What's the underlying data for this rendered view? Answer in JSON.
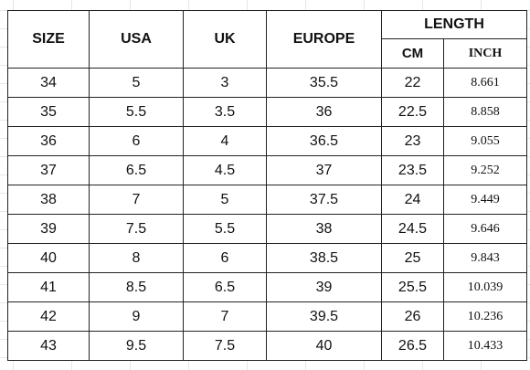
{
  "table": {
    "headers": {
      "size": "SIZE",
      "usa": "USA",
      "uk": "UK",
      "europe": "EUROPE",
      "length": "LENGTH",
      "cm": "CM",
      "inch": "INCH"
    },
    "rows": [
      {
        "size": "34",
        "usa": "5",
        "uk": "3",
        "europe": "35.5",
        "cm": "22",
        "inch": "8.661"
      },
      {
        "size": "35",
        "usa": "5.5",
        "uk": "3.5",
        "europe": "36",
        "cm": "22.5",
        "inch": "8.858"
      },
      {
        "size": "36",
        "usa": "6",
        "uk": "4",
        "europe": "36.5",
        "cm": "23",
        "inch": "9.055"
      },
      {
        "size": "37",
        "usa": "6.5",
        "uk": "4.5",
        "europe": "37",
        "cm": "23.5",
        "inch": "9.252"
      },
      {
        "size": "38",
        "usa": "7",
        "uk": "5",
        "europe": "37.5",
        "cm": "24",
        "inch": "9.449"
      },
      {
        "size": "39",
        "usa": "7.5",
        "uk": "5.5",
        "europe": "38",
        "cm": "24.5",
        "inch": "9.646"
      },
      {
        "size": "40",
        "usa": "8",
        "uk": "6",
        "europe": "38.5",
        "cm": "25",
        "inch": "9.843"
      },
      {
        "size": "41",
        "usa": "8.5",
        "uk": "6.5",
        "europe": "39",
        "cm": "25.5",
        "inch": "10.039"
      },
      {
        "size": "42",
        "usa": "9",
        "uk": "7",
        "europe": "39.5",
        "cm": "26",
        "inch": "10.236"
      },
      {
        "size": "43",
        "usa": "9.5",
        "uk": "7.5",
        "europe": "40",
        "cm": "26.5",
        "inch": "10.433"
      }
    ]
  }
}
